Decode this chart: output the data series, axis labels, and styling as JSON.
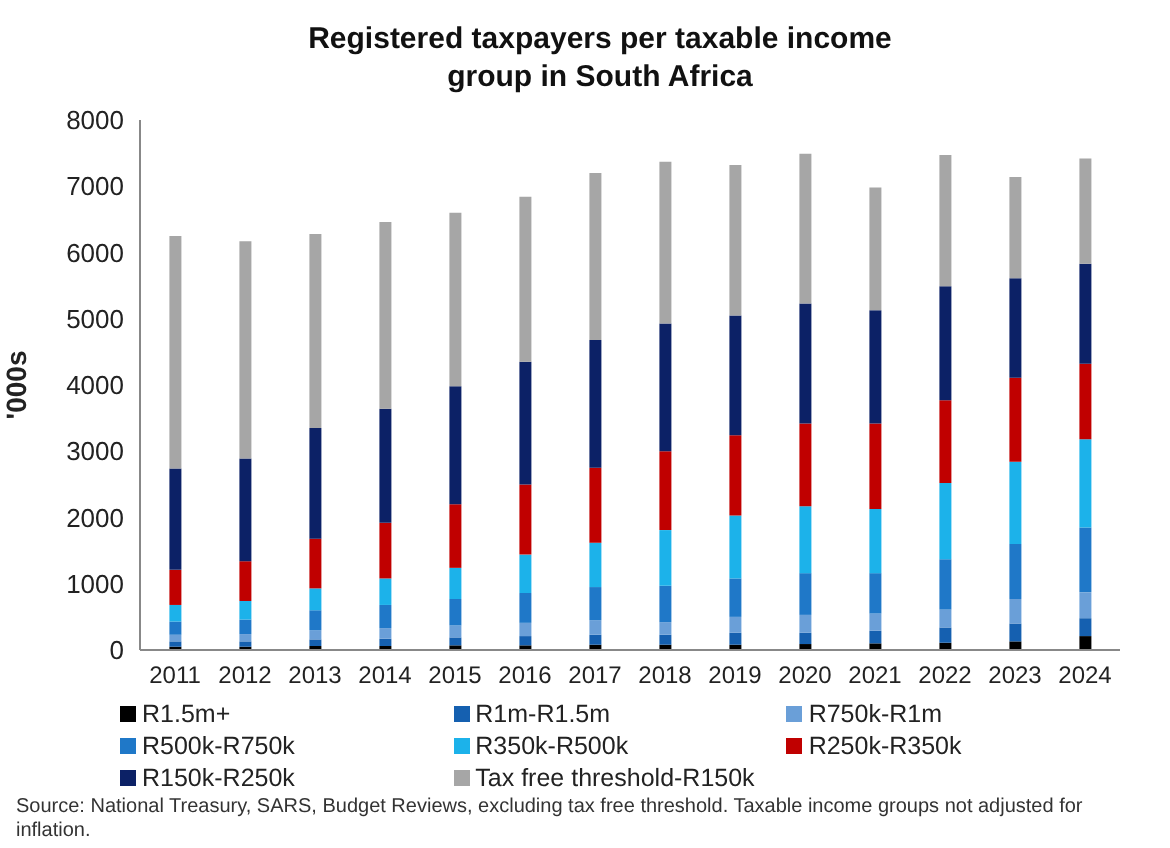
{
  "chart_data": {
    "type": "bar",
    "stacked": true,
    "title": "Registered taxpayers per taxable income group in South Africa",
    "ylabel": "'000s",
    "categories": [
      "2011",
      "2012",
      "2013",
      "2014",
      "2015",
      "2016",
      "2017",
      "2018",
      "2019",
      "2020",
      "2021",
      "2022",
      "2023",
      "2024"
    ],
    "series": [
      {
        "name": "R1.5m+",
        "color": "#000000",
        "values": [
          50,
          50,
          60,
          60,
          70,
          70,
          80,
          80,
          80,
          90,
          100,
          110,
          130,
          210
        ]
      },
      {
        "name": "R1m-R1.5m",
        "color": "#1560b0",
        "values": [
          80,
          80,
          100,
          110,
          120,
          140,
          150,
          150,
          180,
          170,
          190,
          230,
          270,
          270
        ]
      },
      {
        "name": "R750k-R1m",
        "color": "#6a9fd8",
        "values": [
          100,
          110,
          140,
          160,
          180,
          200,
          220,
          190,
          240,
          270,
          260,
          270,
          370,
          390
        ]
      },
      {
        "name": "R500k-R750k",
        "color": "#1f78c8",
        "values": [
          200,
          220,
          300,
          350,
          400,
          450,
          500,
          550,
          580,
          630,
          610,
          760,
          830,
          980
        ]
      },
      {
        "name": "R350k-R500k",
        "color": "#1cb2ea",
        "values": [
          250,
          280,
          330,
          400,
          470,
          580,
          670,
          840,
          950,
          1010,
          970,
          1150,
          1240,
          1330
        ]
      },
      {
        "name": "R250k-R350k",
        "color": "#c00000",
        "values": [
          530,
          600,
          750,
          840,
          960,
          1060,
          1130,
          1190,
          1210,
          1250,
          1290,
          1250,
          1270,
          1140
        ]
      },
      {
        "name": "R150k-R250k",
        "color": "#0c2166",
        "values": [
          1530,
          1550,
          1670,
          1720,
          1780,
          1850,
          1930,
          1930,
          1810,
          1810,
          1710,
          1720,
          1500,
          1510
        ]
      },
      {
        "name": "Tax free threshold-R150k",
        "color": "#a6a6a6",
        "values": [
          3510,
          3280,
          2930,
          2820,
          2620,
          2490,
          2520,
          2440,
          2270,
          2260,
          1850,
          1980,
          1530,
          1590
        ]
      }
    ],
    "ylim": [
      0,
      8000
    ],
    "yticks": [
      0,
      1000,
      2000,
      3000,
      4000,
      5000,
      6000,
      7000,
      8000
    ],
    "legend": "bottom",
    "annotations": [
      "Source: National Treasury, SARS, Budget Reviews, excluding tax free threshold. Taxable income groups not adjusted for inflation."
    ]
  }
}
